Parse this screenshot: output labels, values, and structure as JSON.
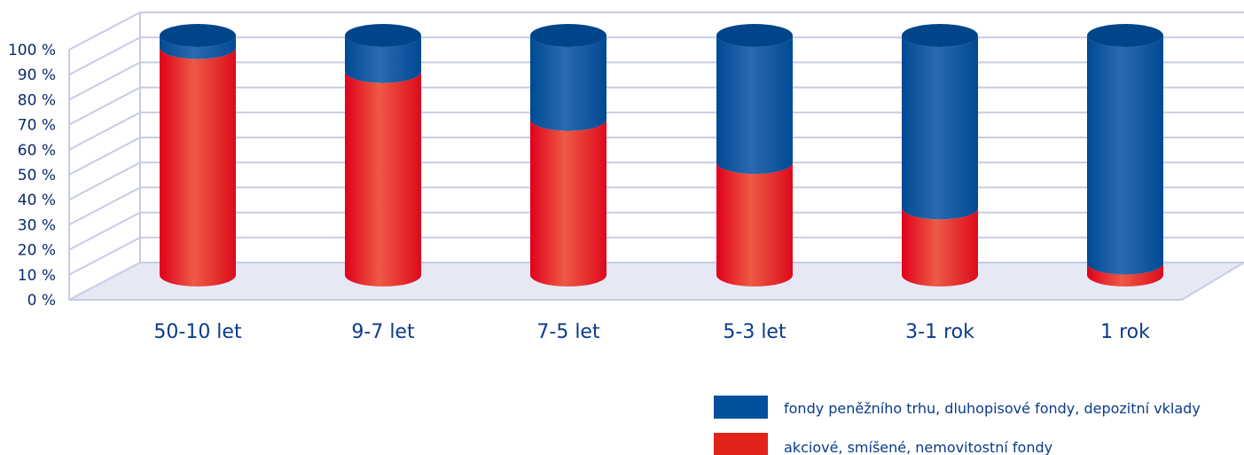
{
  "chart_data": {
    "type": "bar",
    "stacked": true,
    "categories": [
      "50-10 let",
      "9-7 let",
      "7-5 let",
      "5-3 let",
      "3-1 rok",
      "1 rok"
    ],
    "series": [
      {
        "name": "akciové, smíšené, nemovitostní fondy",
        "color": "#e2231a",
        "values": [
          95,
          85,
          65,
          47,
          28,
          5
        ]
      },
      {
        "name": "fondy peněžního trhu, dluhopisové fondy, depozitní vklady",
        "color": "#00509e",
        "values": [
          5,
          15,
          35,
          53,
          72,
          95
        ]
      }
    ],
    "y_ticks": [
      "0 %",
      "10 %",
      "20 %",
      "30 %",
      "40 %",
      "50 %",
      "60 %",
      "70 %",
      "80 %",
      "90 %",
      "100 %"
    ],
    "ylim": [
      0,
      100
    ],
    "grid": true,
    "legend_position": "bottom-right"
  }
}
